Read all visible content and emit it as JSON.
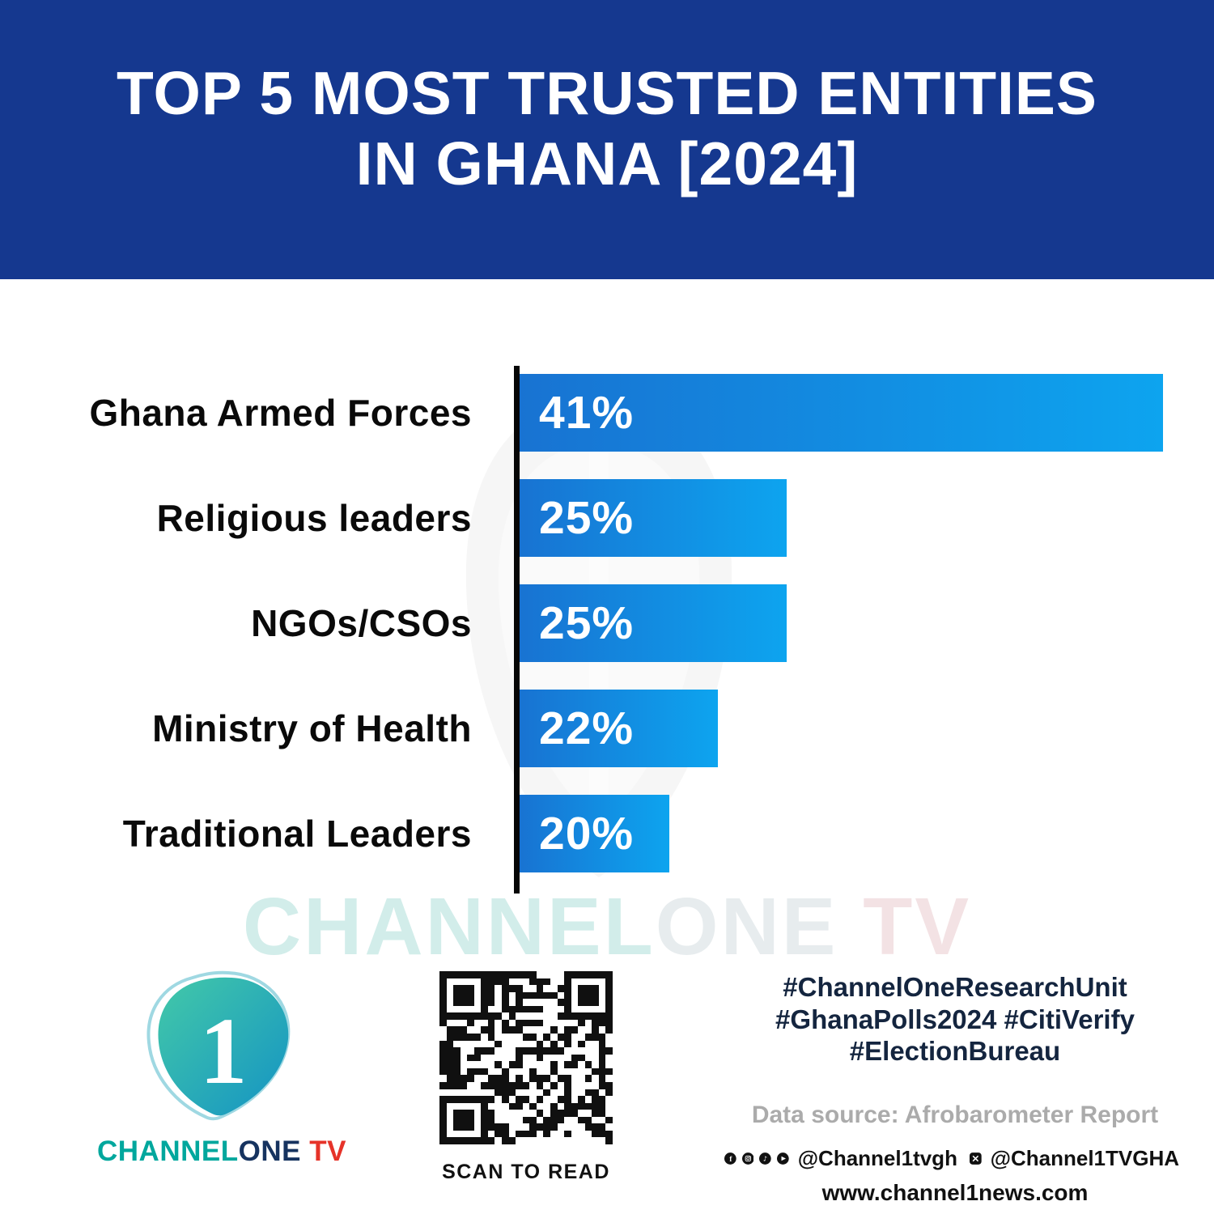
{
  "header": {
    "title_line1": "TOP 5 MOST TRUSTED ENTITIES",
    "title_line2": "IN GHANA [2024]",
    "bg_color": "#15388f"
  },
  "chart_data": {
    "type": "bar",
    "orientation": "horizontal",
    "title": "Top 5 Most Trusted Entities in Ghana [2024]",
    "categories": [
      "Ghana Armed Forces",
      "Religious leaders",
      "NGOs/CSOs",
      "Ministry of Health",
      "Traditional Leaders"
    ],
    "values": [
      41,
      25,
      25,
      22,
      20
    ],
    "value_labels": [
      "41%",
      "25%",
      "25%",
      "22%",
      "20%"
    ],
    "bar_display_widths_pct": [
      92.7,
      38.5,
      38.5,
      28.6,
      21.6
    ],
    "display_note": "bar lengths in source graphic are not proportional to values",
    "bar_gradient": [
      "#1873d2",
      "#0da4ef"
    ],
    "axis_color": "#060606",
    "legend": "none",
    "grid": false
  },
  "watermark": {
    "channel": "CHANNEL",
    "one": "ONE",
    "tv": " TV"
  },
  "footer": {
    "logo": {
      "channel": "CHANNEL",
      "one": "ONE",
      "tv": " TV",
      "accent_teal": "#00a79d",
      "accent_red": "#e63329"
    },
    "qr_caption": "SCAN TO READ",
    "hashtags": [
      "#ChannelOneResearchUnit",
      "#GhanaPolls2024 #CitiVerify",
      "#ElectionBureau"
    ],
    "data_source": "Data source: Afrobarometer Report",
    "social_handle1": "@Channel1tvgh",
    "social_handle2": "@Channel1TVGHA",
    "website": "www.channel1news.com"
  }
}
